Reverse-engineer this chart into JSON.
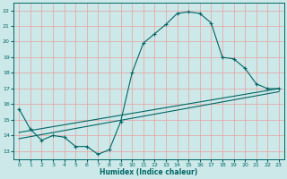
{
  "xlabel": "Humidex (Indice chaleur)",
  "bg_color": "#cce8e8",
  "line_color": "#006666",
  "grid_color": "#e8a0a0",
  "xlim": [
    -0.5,
    23.5
  ],
  "ylim": [
    12.5,
    22.5
  ],
  "yticks": [
    13,
    14,
    15,
    16,
    17,
    18,
    19,
    20,
    21,
    22
  ],
  "xticks": [
    0,
    1,
    2,
    3,
    4,
    5,
    6,
    7,
    8,
    9,
    10,
    11,
    12,
    13,
    14,
    15,
    16,
    17,
    18,
    19,
    20,
    21,
    22,
    23
  ],
  "line1_x": [
    0,
    1,
    2,
    3,
    4,
    5,
    6,
    7,
    8,
    9,
    10,
    11,
    12,
    13,
    14,
    15,
    16,
    17,
    18,
    19,
    20,
    21,
    22,
    23
  ],
  "line1_y": [
    15.7,
    14.4,
    13.7,
    14.0,
    13.9,
    13.3,
    13.3,
    12.8,
    13.1,
    14.9,
    18.0,
    19.9,
    20.5,
    21.1,
    21.8,
    21.9,
    21.8,
    21.2,
    19.0,
    18.9,
    18.3,
    17.3,
    17.0,
    17.0
  ],
  "line2_x": [
    0,
    23
  ],
  "line2_y": [
    14.2,
    17.0
  ],
  "line3_x": [
    0,
    23
  ],
  "line3_y": [
    13.8,
    16.8
  ]
}
